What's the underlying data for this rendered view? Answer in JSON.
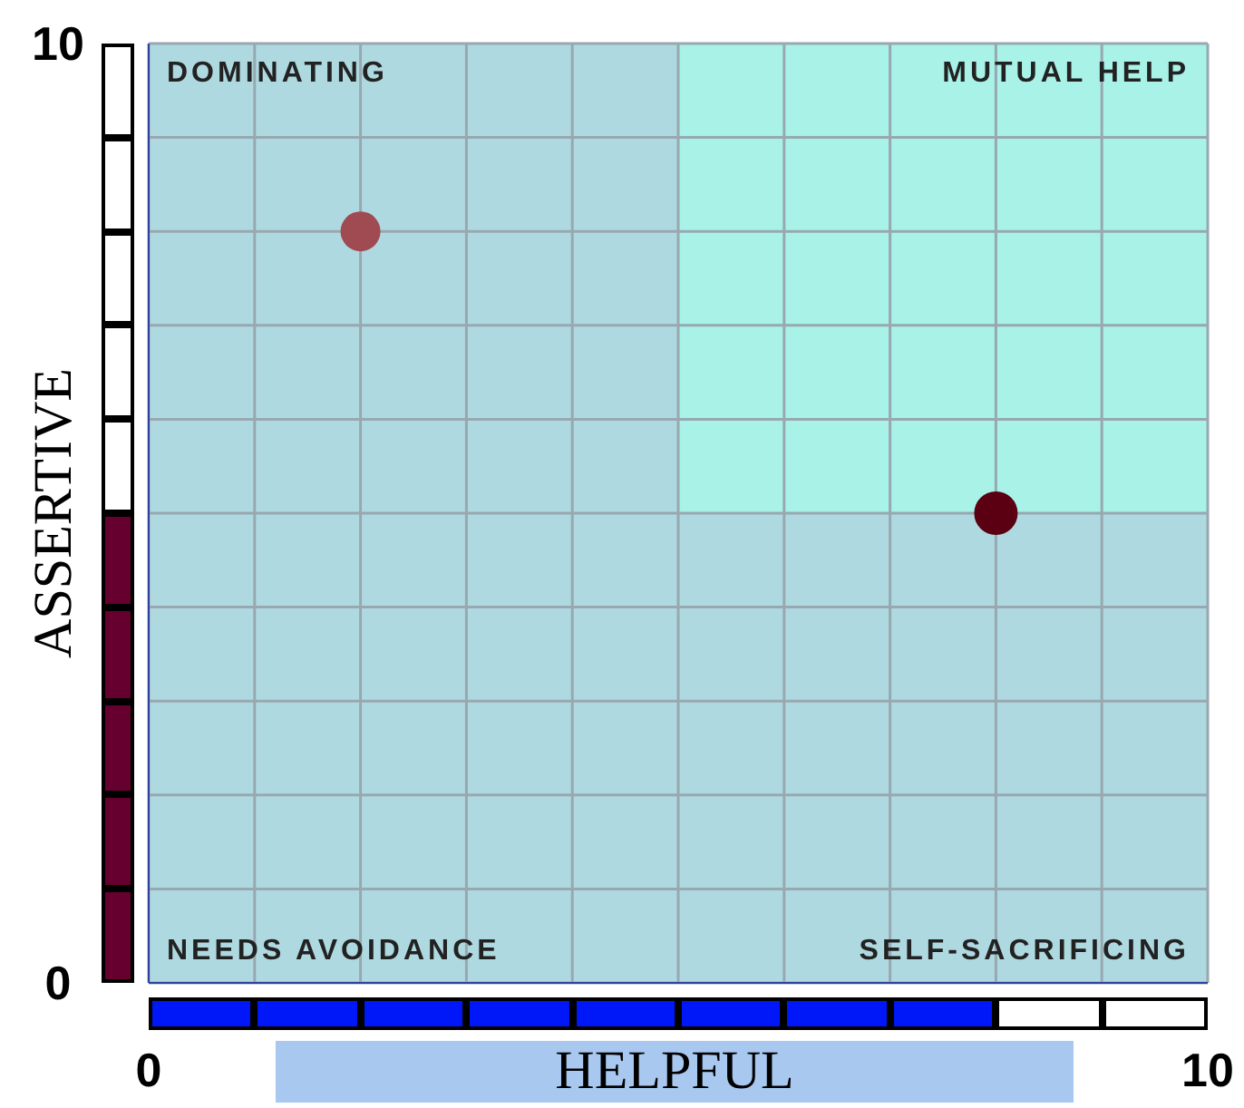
{
  "chart_data": {
    "type": "scatter",
    "xlabel": "HELPFUL",
    "ylabel": "ASSERTIVE",
    "x": [
      2,
      8
    ],
    "values": [
      8,
      5
    ],
    "colors": [
      "#a04a52",
      "#5a0012"
    ],
    "xlim": [
      0,
      10
    ],
    "ylim": [
      0,
      10
    ],
    "xticks": [
      0,
      {
        "value": 1,
        "label": null
      },
      {
        "value": 2,
        "label": null
      },
      {
        "value": 3,
        "label": null
      },
      {
        "value": 4,
        "label": null
      },
      {
        "value": 5,
        "label": null
      },
      {
        "value": 6,
        "label": null
      },
      {
        "value": 7,
        "label": null
      },
      {
        "value": 8,
        "label": null
      },
      {
        "value": 9,
        "label": null
      },
      10
    ],
    "yticks": [
      0,
      {
        "value": 1,
        "label": null
      },
      {
        "value": 2,
        "label": null
      },
      {
        "value": 3,
        "label": null
      },
      {
        "value": 4,
        "label": null
      },
      {
        "value": 5,
        "label": null
      },
      {
        "value": 6,
        "label": null
      },
      {
        "value": 7,
        "label": null
      },
      {
        "value": 8,
        "label": null
      },
      {
        "value": 9,
        "label": null
      },
      10
    ],
    "grid": true,
    "marker": "circle",
    "annotations": [
      "DOMINATING",
      "MUTUAL HELP",
      "NEEDS AVOIDANCE",
      "SELF-SACRIFICING"
    ]
  }
}
